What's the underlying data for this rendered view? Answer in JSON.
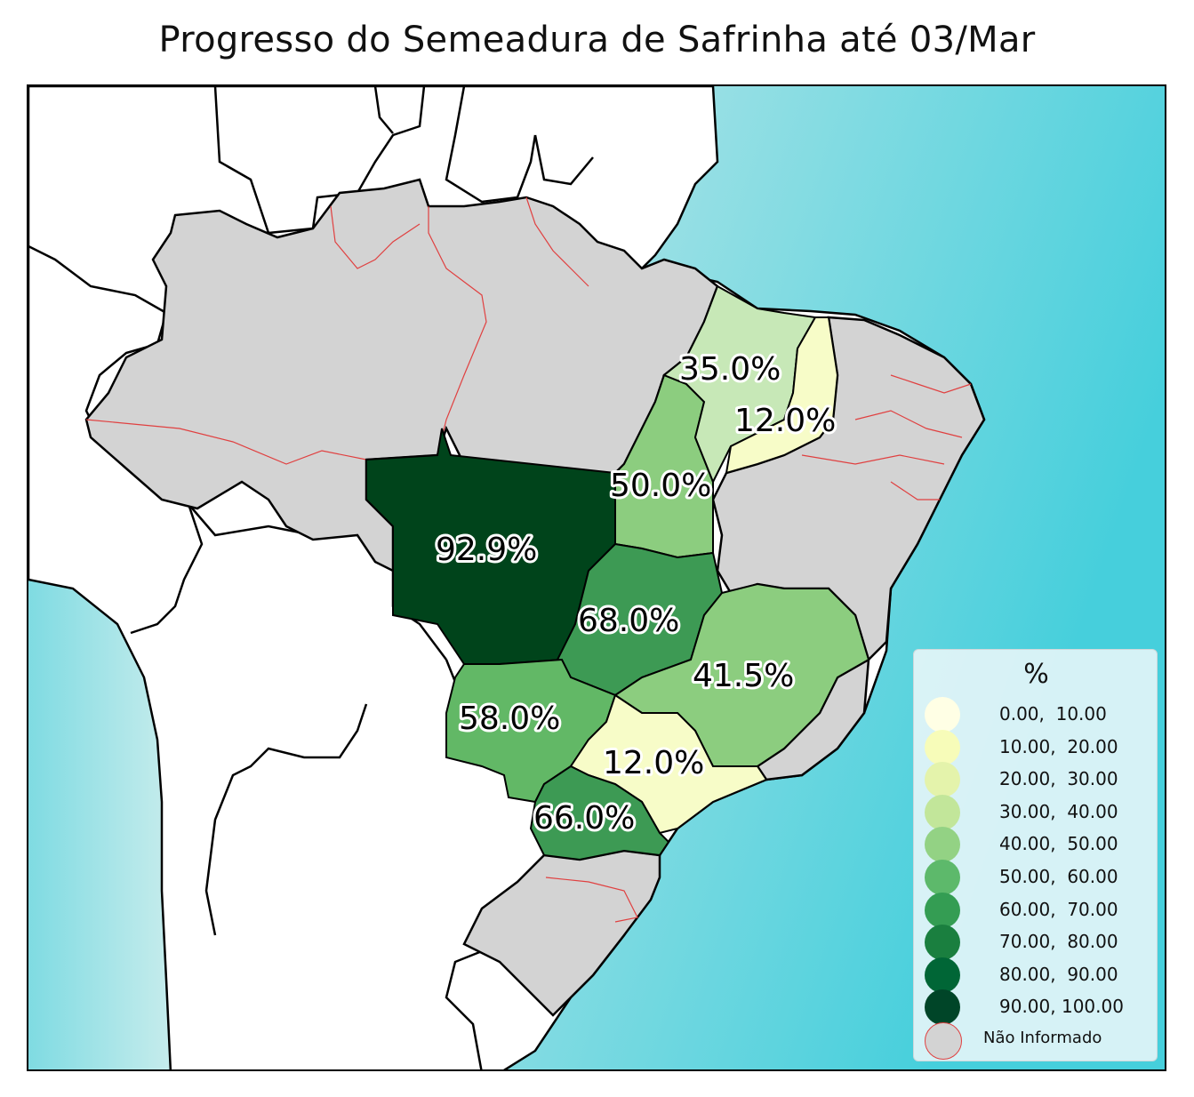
{
  "title": "Progresso do Semeadura de Safrinha até 03/Mar",
  "colors": {
    "ocean_light": "#bfe9ea",
    "ocean_dark": "#43d0de",
    "land_foreign": "#ffffff",
    "not_informed": "#d3d3d3",
    "state_border_red": "#e04040",
    "country_border": "#000000"
  },
  "regions": [
    {
      "name": "MT",
      "value": 92.9,
      "label": "92.9%",
      "color": "#00441b"
    },
    {
      "name": "TO",
      "value": 50.0,
      "label": "50.0%",
      "color": "#8ccd7f"
    },
    {
      "name": "MA",
      "value": 35.0,
      "label": "35.0%",
      "color": "#c7e8b7"
    },
    {
      "name": "PI",
      "value": 12.0,
      "label": "12.0%",
      "color": "#f7fcc8"
    },
    {
      "name": "GO",
      "value": 68.0,
      "label": "68.0%",
      "color": "#3d9a54"
    },
    {
      "name": "MG",
      "value": 41.5,
      "label": "41.5%",
      "color": "#8ccd7f"
    },
    {
      "name": "MS",
      "value": 58.0,
      "label": "58.0%",
      "color": "#62b866"
    },
    {
      "name": "SP",
      "value": 12.0,
      "label": "12.0%",
      "color": "#f7fcc8"
    },
    {
      "name": "PR",
      "value": 66.0,
      "label": "66.0%",
      "color": "#3d9a54"
    }
  ],
  "legend": {
    "title": "%",
    "items": [
      {
        "label": "0.00,  10.00",
        "color": "#ffffe5"
      },
      {
        "label": "10.00,  20.00",
        "color": "#f7fcb9"
      },
      {
        "label": "20.00,  30.00",
        "color": "#e4f3ab"
      },
      {
        "label": "30.00,  40.00",
        "color": "#c2e69a"
      },
      {
        "label": "40.00,  50.00",
        "color": "#93d284"
      },
      {
        "label": "50.00,  60.00",
        "color": "#5db96b"
      },
      {
        "label": "60.00,  70.00",
        "color": "#349d53"
      },
      {
        "label": "70.00,  80.00",
        "color": "#1a7f3f"
      },
      {
        "label": "80.00,  90.00",
        "color": "#006636"
      },
      {
        "label": "90.00, 100.00",
        "color": "#004528"
      },
      {
        "label": "Não Informado",
        "color": "#d3d3d3"
      }
    ]
  }
}
